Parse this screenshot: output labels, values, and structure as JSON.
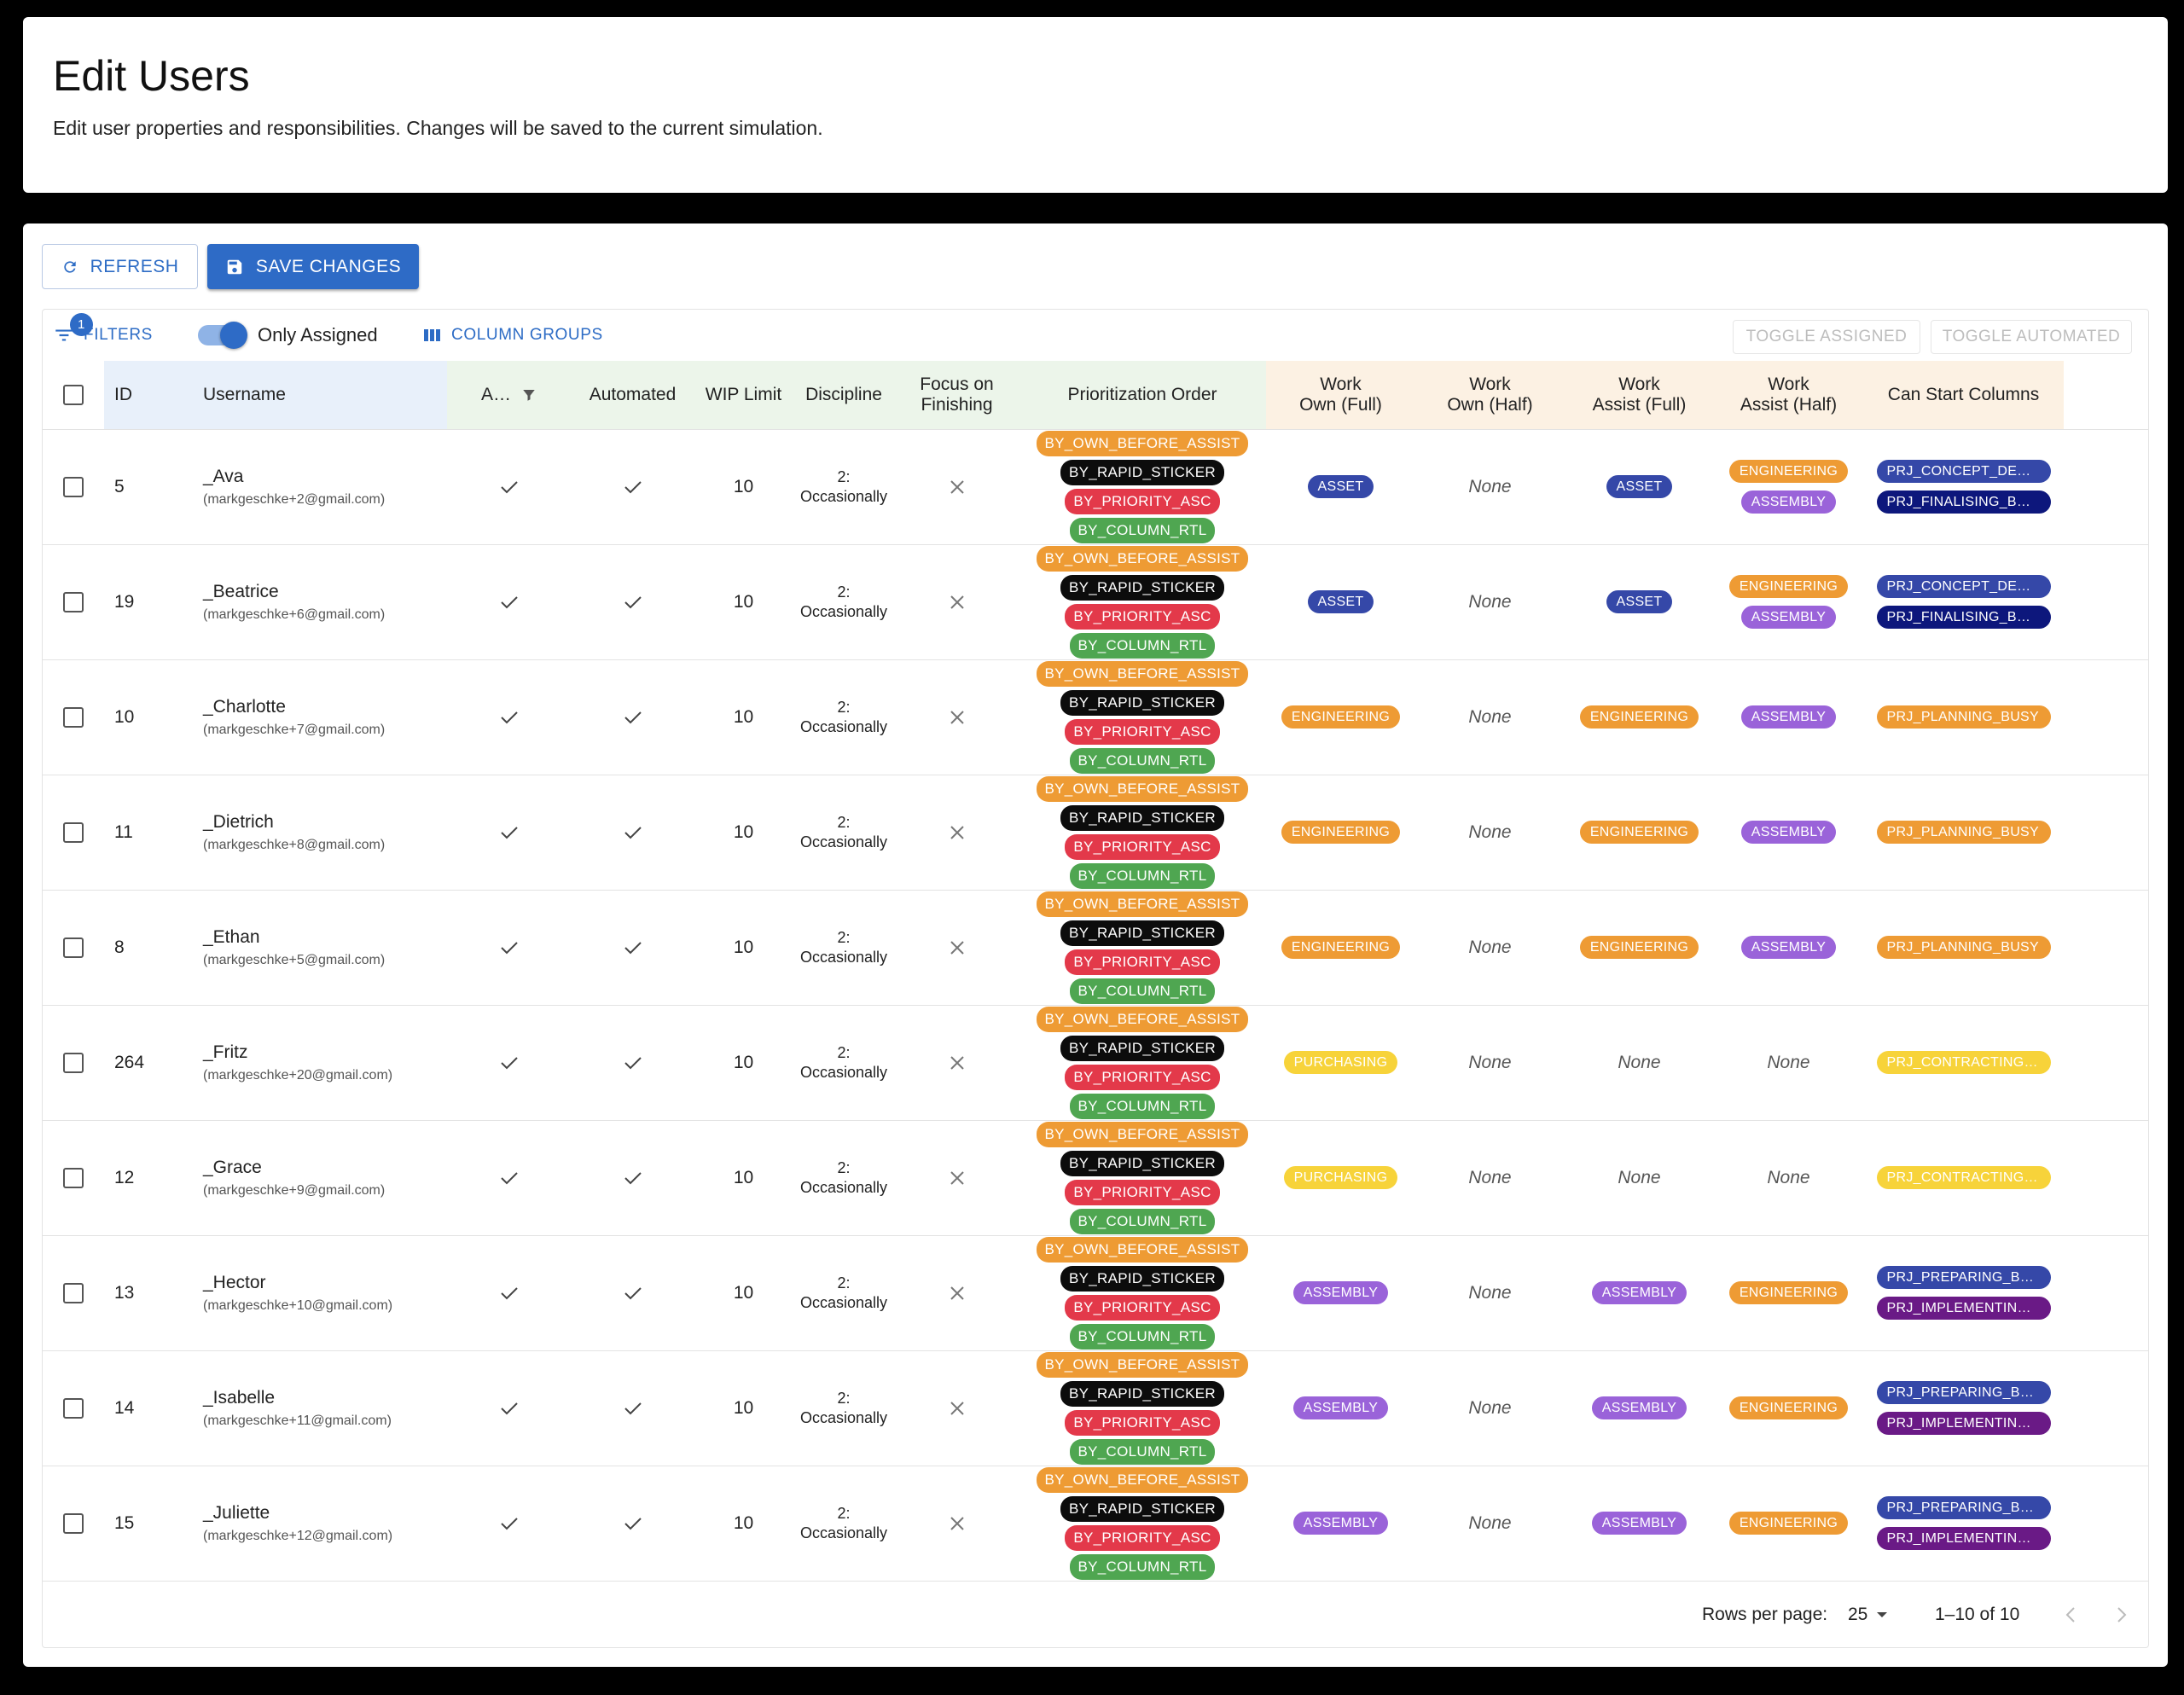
{
  "header": {
    "title": "Edit Users",
    "subtitle": "Edit user properties and responsibilities. Changes will be saved to the current simulation."
  },
  "actions": {
    "refresh_label": "REFRESH",
    "save_label": "SAVE CHANGES"
  },
  "toolbar": {
    "filters_label": "FILTERS",
    "filters_count": "1",
    "only_assigned_label": "Only Assigned",
    "column_groups_label": "COLUMN GROUPS",
    "toggle_assigned_label": "TOGGLE ASSIGNED",
    "toggle_automated_label": "TOGGLE AUTOMATED"
  },
  "columns": {
    "id": "ID",
    "username": "Username",
    "assigned": "A…",
    "automated": "Automated",
    "wip_limit": "WIP Limit",
    "discipline": "Discipline",
    "focus_line1": "Focus on",
    "focus_line2": "Finishing",
    "prioritization": "Prioritization Order",
    "wof_line1": "Work",
    "wof_line2": "Own (Full)",
    "woh_line1": "Work",
    "woh_line2": "Own (Half)",
    "waf_line1": "Work",
    "waf_line2": "Assist (Full)",
    "wah_line1": "Work",
    "wah_line2": "Assist (Half)",
    "can_start": "Can Start Columns"
  },
  "priority_chips": [
    "BY_OWN_BEFORE_ASSIST",
    "BY_RAPID_STICKER",
    "BY_PRIORITY_ASC",
    "BY_COLUMN_RTL"
  ],
  "colors": {
    "accent": "#2e6bc6",
    "asset": "#3548a8",
    "engineering": "#ee9b34",
    "assembly": "#9a63d9",
    "purchasing": "#f7d33a"
  },
  "rows": [
    {
      "id": "5",
      "name": "_Ava",
      "email": "(markgeschke+2@gmail.com)",
      "wip": "10",
      "disc1": "2:",
      "disc2": "Occasionally",
      "wof": [
        "ASSET"
      ],
      "woh": "None",
      "waf": [
        "ASSET"
      ],
      "wah": [
        "ENGINEERING",
        "ASSEMBLY"
      ],
      "cols": [
        "PRJ_CONCEPT_DE…",
        "PRJ_FINALISING_B…"
      ]
    },
    {
      "id": "19",
      "name": "_Beatrice",
      "email": "(markgeschke+6@gmail.com)",
      "wip": "10",
      "disc1": "2:",
      "disc2": "Occasionally",
      "wof": [
        "ASSET"
      ],
      "woh": "None",
      "waf": [
        "ASSET"
      ],
      "wah": [
        "ENGINEERING",
        "ASSEMBLY"
      ],
      "cols": [
        "PRJ_CONCEPT_DE…",
        "PRJ_FINALISING_B…"
      ]
    },
    {
      "id": "10",
      "name": "_Charlotte",
      "email": "(markgeschke+7@gmail.com)",
      "wip": "10",
      "disc1": "2:",
      "disc2": "Occasionally",
      "wof": [
        "ENGINEERING"
      ],
      "woh": "None",
      "waf": [
        "ENGINEERING"
      ],
      "wah": [
        "ASSEMBLY"
      ],
      "cols": [
        "PRJ_PLANNING_BUSY"
      ]
    },
    {
      "id": "11",
      "name": "_Dietrich",
      "email": "(markgeschke+8@gmail.com)",
      "wip": "10",
      "disc1": "2:",
      "disc2": "Occasionally",
      "wof": [
        "ENGINEERING"
      ],
      "woh": "None",
      "waf": [
        "ENGINEERING"
      ],
      "wah": [
        "ASSEMBLY"
      ],
      "cols": [
        "PRJ_PLANNING_BUSY"
      ]
    },
    {
      "id": "8",
      "name": "_Ethan",
      "email": "(markgeschke+5@gmail.com)",
      "wip": "10",
      "disc1": "2:",
      "disc2": "Occasionally",
      "wof": [
        "ENGINEERING"
      ],
      "woh": "None",
      "waf": [
        "ENGINEERING"
      ],
      "wah": [
        "ASSEMBLY"
      ],
      "cols": [
        "PRJ_PLANNING_BUSY"
      ]
    },
    {
      "id": "264",
      "name": "_Fritz",
      "email": "(markgeschke+20@gmail.com)",
      "wip": "10",
      "disc1": "2:",
      "disc2": "Occasionally",
      "wof": [
        "PURCHASING"
      ],
      "woh": "None",
      "waf": "None",
      "wah": "None",
      "cols": [
        "PRJ_CONTRACTING…"
      ]
    },
    {
      "id": "12",
      "name": "_Grace",
      "email": "(markgeschke+9@gmail.com)",
      "wip": "10",
      "disc1": "2:",
      "disc2": "Occasionally",
      "wof": [
        "PURCHASING"
      ],
      "woh": "None",
      "waf": "None",
      "wah": "None",
      "cols": [
        "PRJ_CONTRACTING…"
      ]
    },
    {
      "id": "13",
      "name": "_Hector",
      "email": "(markgeschke+10@gmail.com)",
      "wip": "10",
      "disc1": "2:",
      "disc2": "Occasionally",
      "wof": [
        "ASSEMBLY"
      ],
      "woh": "None",
      "waf": [
        "ASSEMBLY"
      ],
      "wah": [
        "ENGINEERING"
      ],
      "cols": [
        "PRJ_PREPARING_B…",
        "PRJ_IMPLEMENTIN…"
      ]
    },
    {
      "id": "14",
      "name": "_Isabelle",
      "email": "(markgeschke+11@gmail.com)",
      "wip": "10",
      "disc1": "2:",
      "disc2": "Occasionally",
      "wof": [
        "ASSEMBLY"
      ],
      "woh": "None",
      "waf": [
        "ASSEMBLY"
      ],
      "wah": [
        "ENGINEERING"
      ],
      "cols": [
        "PRJ_PREPARING_B…",
        "PRJ_IMPLEMENTIN…"
      ]
    },
    {
      "id": "15",
      "name": "_Juliette",
      "email": "(markgeschke+12@gmail.com)",
      "wip": "10",
      "disc1": "2:",
      "disc2": "Occasionally",
      "wof": [
        "ASSEMBLY"
      ],
      "woh": "None",
      "waf": [
        "ASSEMBLY"
      ],
      "wah": [
        "ENGINEERING"
      ],
      "cols": [
        "PRJ_PREPARING_B…",
        "PRJ_IMPLEMENTIN…"
      ]
    }
  ],
  "footer": {
    "rows_per_page_label": "Rows per page:",
    "rows_per_page_value": "25",
    "range": "1–10 of 10"
  }
}
